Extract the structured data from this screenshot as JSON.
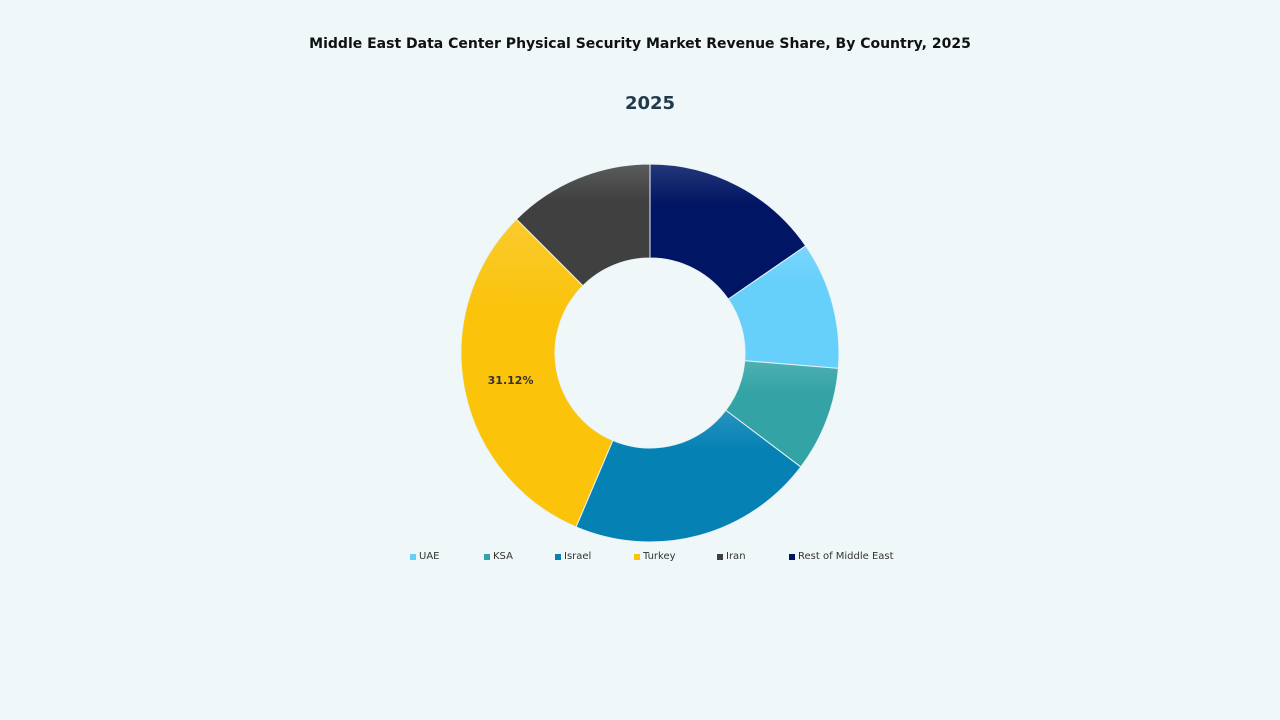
{
  "chart_data": {
    "type": "pie",
    "variant": "donut",
    "title": "Middle East Data Center Physical Security Market Revenue Share, By Country, 2025",
    "subtitle": "2025",
    "categories": [
      "UAE",
      "KSA",
      "Israel",
      "Turkey",
      "Iran",
      "Rest of Middle East"
    ],
    "values": [
      10.9,
      9.0,
      21.1,
      31.12,
      12.48,
      15.4
    ],
    "colors": [
      "#66d0fb",
      "#33a3a5",
      "#0581b4",
      "#fbc30a",
      "#404040",
      "#001563"
    ],
    "data_labels": [
      null,
      null,
      null,
      "31.12%",
      null,
      null
    ],
    "legend_position": "bottom"
  }
}
